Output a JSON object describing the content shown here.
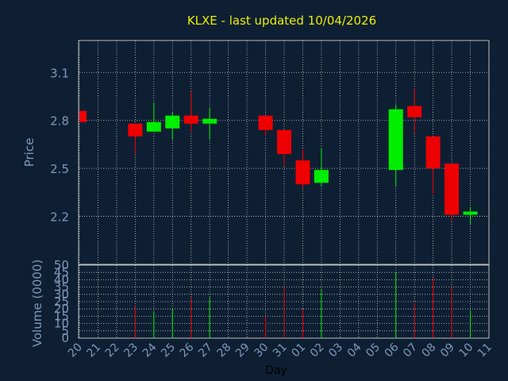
{
  "chart_data": {
    "type": "candlestick",
    "title": "KLXE - last updated 10/04/2026",
    "xlabel": "Day",
    "price_ylabel": "Price",
    "volume_ylabel": "Volume (0000)",
    "day_ticks": [
      "20",
      "21",
      "22",
      "23",
      "24",
      "25",
      "26",
      "27",
      "28",
      "29",
      "30",
      "31",
      "01",
      "02",
      "03",
      "04",
      "05",
      "06",
      "07",
      "08",
      "09",
      "10",
      "11"
    ],
    "price_ticks": [
      2.2,
      2.5,
      2.8,
      3.1
    ],
    "price_tick_labels": [
      "2.2",
      "2.5",
      "2.8",
      "3.1"
    ],
    "price_ylim": [
      1.9,
      3.3
    ],
    "volume_ticks": [
      0,
      5,
      10,
      15,
      20,
      25,
      30,
      35,
      40,
      45,
      50
    ],
    "volume_tick_labels": [
      "0",
      "5",
      "10",
      "15",
      "20",
      "25",
      "30",
      "35",
      "40",
      "45",
      "50"
    ],
    "volume_ylim": [
      0,
      50
    ],
    "candles": [
      {
        "day": "20",
        "open": 2.86,
        "close": 2.79,
        "high": 2.86,
        "low": 2.79,
        "volume": 0
      },
      {
        "day": "23",
        "open": 2.78,
        "close": 2.7,
        "high": 2.78,
        "low": 2.59,
        "volume": 22
      },
      {
        "day": "24",
        "open": 2.73,
        "close": 2.79,
        "high": 2.91,
        "low": 2.73,
        "volume": 18
      },
      {
        "day": "25",
        "open": 2.75,
        "close": 2.83,
        "high": 2.85,
        "low": 2.68,
        "volume": 20
      },
      {
        "day": "26",
        "open": 2.83,
        "close": 2.78,
        "high": 2.98,
        "low": 2.73,
        "volume": 28
      },
      {
        "day": "27",
        "open": 2.78,
        "close": 2.81,
        "high": 2.88,
        "low": 2.68,
        "volume": 28
      },
      {
        "day": "30",
        "open": 2.83,
        "close": 2.74,
        "high": 2.83,
        "low": 2.7,
        "volume": 15
      },
      {
        "day": "31",
        "open": 2.74,
        "close": 2.59,
        "high": 2.74,
        "low": 2.51,
        "volume": 35
      },
      {
        "day": "01",
        "open": 2.55,
        "close": 2.4,
        "high": 2.62,
        "low": 2.38,
        "volume": 20
      },
      {
        "day": "02",
        "open": 2.41,
        "close": 2.49,
        "high": 2.63,
        "low": 2.39,
        "volume": 33
      },
      {
        "day": "06",
        "open": 2.49,
        "close": 2.87,
        "high": 2.9,
        "low": 2.39,
        "volume": 45
      },
      {
        "day": "07",
        "open": 2.89,
        "close": 2.82,
        "high": 3.0,
        "low": 2.72,
        "volume": 24
      },
      {
        "day": "08",
        "open": 2.7,
        "close": 2.5,
        "high": 2.7,
        "low": 2.34,
        "volume": 41
      },
      {
        "day": "09",
        "open": 2.53,
        "close": 2.21,
        "high": 2.53,
        "low": 2.17,
        "volume": 35
      },
      {
        "day": "10",
        "open": 2.21,
        "close": 2.23,
        "high": 2.26,
        "low": 2.15,
        "volume": 19
      }
    ],
    "colors": {
      "background": "#0e1f33",
      "up": "#00ee00",
      "down": "#ee0000",
      "title": "#eeee00",
      "text": "#7f98b8",
      "axis": "#bbbbbb",
      "grid": "#c8c8c8"
    }
  }
}
